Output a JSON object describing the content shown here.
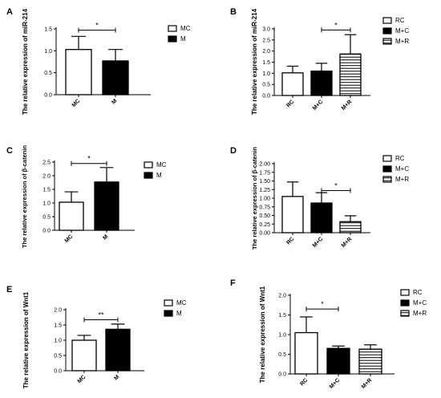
{
  "chart_data": [
    {
      "type": "bar",
      "panel": "A",
      "categories": [
        "MC",
        "M"
      ],
      "values": [
        1.03,
        0.77
      ],
      "errors": [
        0.3,
        0.26
      ],
      "fills": [
        "white",
        "black"
      ],
      "ylabel": "The relative expression of miR-214",
      "ylim": [
        0,
        1.5
      ],
      "yticks": [
        0.0,
        0.5,
        1.0,
        1.5
      ],
      "ytick_labels": [
        "0.0",
        "0.5",
        "1.0",
        "1.5"
      ],
      "legend": [
        {
          "label": "MC",
          "fill": "white"
        },
        {
          "label": "M",
          "fill": "black"
        }
      ],
      "significance": [
        {
          "from": 0,
          "to": 1,
          "label": "*",
          "y": 1.47
        }
      ]
    },
    {
      "type": "bar",
      "panel": "B",
      "categories": [
        "RC",
        "M+C",
        "M+R"
      ],
      "values": [
        1.02,
        1.1,
        1.87
      ],
      "errors": [
        0.3,
        0.35,
        0.87
      ],
      "fills": [
        "white",
        "black",
        "hatch"
      ],
      "ylabel": "The relative expression of miR-214",
      "ylim": [
        0,
        3.0
      ],
      "yticks": [
        0.0,
        0.5,
        1.0,
        1.5,
        2.0,
        2.5,
        3.0
      ],
      "ytick_labels": [
        "0.0",
        "0.5",
        "1.0",
        "1.5",
        "2.0",
        "2.5",
        "3.0"
      ],
      "legend": [
        {
          "label": "RC",
          "fill": "white"
        },
        {
          "label": "M+C",
          "fill": "black"
        },
        {
          "label": "M+R",
          "fill": "hatch"
        }
      ],
      "significance": [
        {
          "from": 1,
          "to": 2,
          "label": "*",
          "y": 2.95
        }
      ]
    },
    {
      "type": "bar",
      "panel": "C",
      "categories": [
        "MC",
        "M"
      ],
      "values": [
        1.03,
        1.77
      ],
      "errors": [
        0.38,
        0.53
      ],
      "fills": [
        "white",
        "black"
      ],
      "ylabel": "The relative expression of β-catenin",
      "ylim": [
        0,
        2.5
      ],
      "yticks": [
        0.0,
        0.5,
        1.0,
        1.5,
        2.0,
        2.5
      ],
      "ytick_labels": [
        "0.0",
        "0.5",
        "1.0",
        "1.5",
        "2.0",
        "2.5"
      ],
      "legend": [
        {
          "label": "MC",
          "fill": "white"
        },
        {
          "label": "M",
          "fill": "black"
        }
      ],
      "significance": [
        {
          "from": 0,
          "to": 1,
          "label": "*",
          "y": 2.45
        }
      ]
    },
    {
      "type": "bar",
      "panel": "D",
      "categories": [
        "RC",
        "M+C",
        "M+R"
      ],
      "values": [
        1.05,
        0.86,
        0.32
      ],
      "errors": [
        0.42,
        0.3,
        0.17
      ],
      "fills": [
        "white",
        "black",
        "hatch"
      ],
      "ylabel": "The relative expression of β-catenin",
      "ylim": [
        0,
        2.0
      ],
      "yticks": [
        0.0,
        0.25,
        0.5,
        0.75,
        1.0,
        1.25,
        1.5,
        1.75,
        2.0
      ],
      "ytick_labels": [
        "0.00",
        "0.25",
        "0.50",
        "0.75",
        "1.00",
        "1.25",
        "1.50",
        "1.75",
        "2.00"
      ],
      "legend": [
        {
          "label": "RC",
          "fill": "white"
        },
        {
          "label": "M+C",
          "fill": "black"
        },
        {
          "label": "M+R",
          "fill": "hatch"
        }
      ],
      "significance": [
        {
          "from": 1,
          "to": 2,
          "label": "*",
          "y": 1.22
        }
      ]
    },
    {
      "type": "bar",
      "panel": "E",
      "categories": [
        "MC",
        "M"
      ],
      "values": [
        1.0,
        1.36
      ],
      "errors": [
        0.16,
        0.17
      ],
      "fills": [
        "white",
        "black"
      ],
      "ylabel": "The  relative expression of Wnt1",
      "ylim": [
        0,
        2.0
      ],
      "yticks": [
        0.0,
        0.5,
        1.0,
        1.5,
        2.0
      ],
      "ytick_labels": [
        "0.0",
        "0.5",
        "1.0",
        "1.5",
        "2.0"
      ],
      "legend": [
        {
          "label": "MC",
          "fill": "white"
        },
        {
          "label": "M",
          "fill": "black"
        }
      ],
      "significance": [
        {
          "from": 0,
          "to": 1,
          "label": "**",
          "y": 1.67
        }
      ]
    },
    {
      "type": "bar",
      "panel": "F",
      "categories": [
        "RC",
        "M+C",
        "M+R"
      ],
      "values": [
        1.05,
        0.65,
        0.63
      ],
      "errors": [
        0.4,
        0.06,
        0.11
      ],
      "fills": [
        "white",
        "black",
        "hatch"
      ],
      "ylabel": "The relative expression of Wnt1",
      "ylim": [
        0,
        2.0
      ],
      "yticks": [
        0.0,
        0.5,
        1.0,
        1.5,
        2.0
      ],
      "ytick_labels": [
        "0.0",
        "0.5",
        "1.0",
        "1.5",
        "2.0"
      ],
      "legend": [
        {
          "label": "RC",
          "fill": "white"
        },
        {
          "label": "M+C",
          "fill": "black"
        },
        {
          "label": "M+R",
          "fill": "hatch"
        }
      ],
      "significance": [
        {
          "from": 0,
          "to": 1,
          "label": "*",
          "y": 1.65
        }
      ]
    }
  ]
}
